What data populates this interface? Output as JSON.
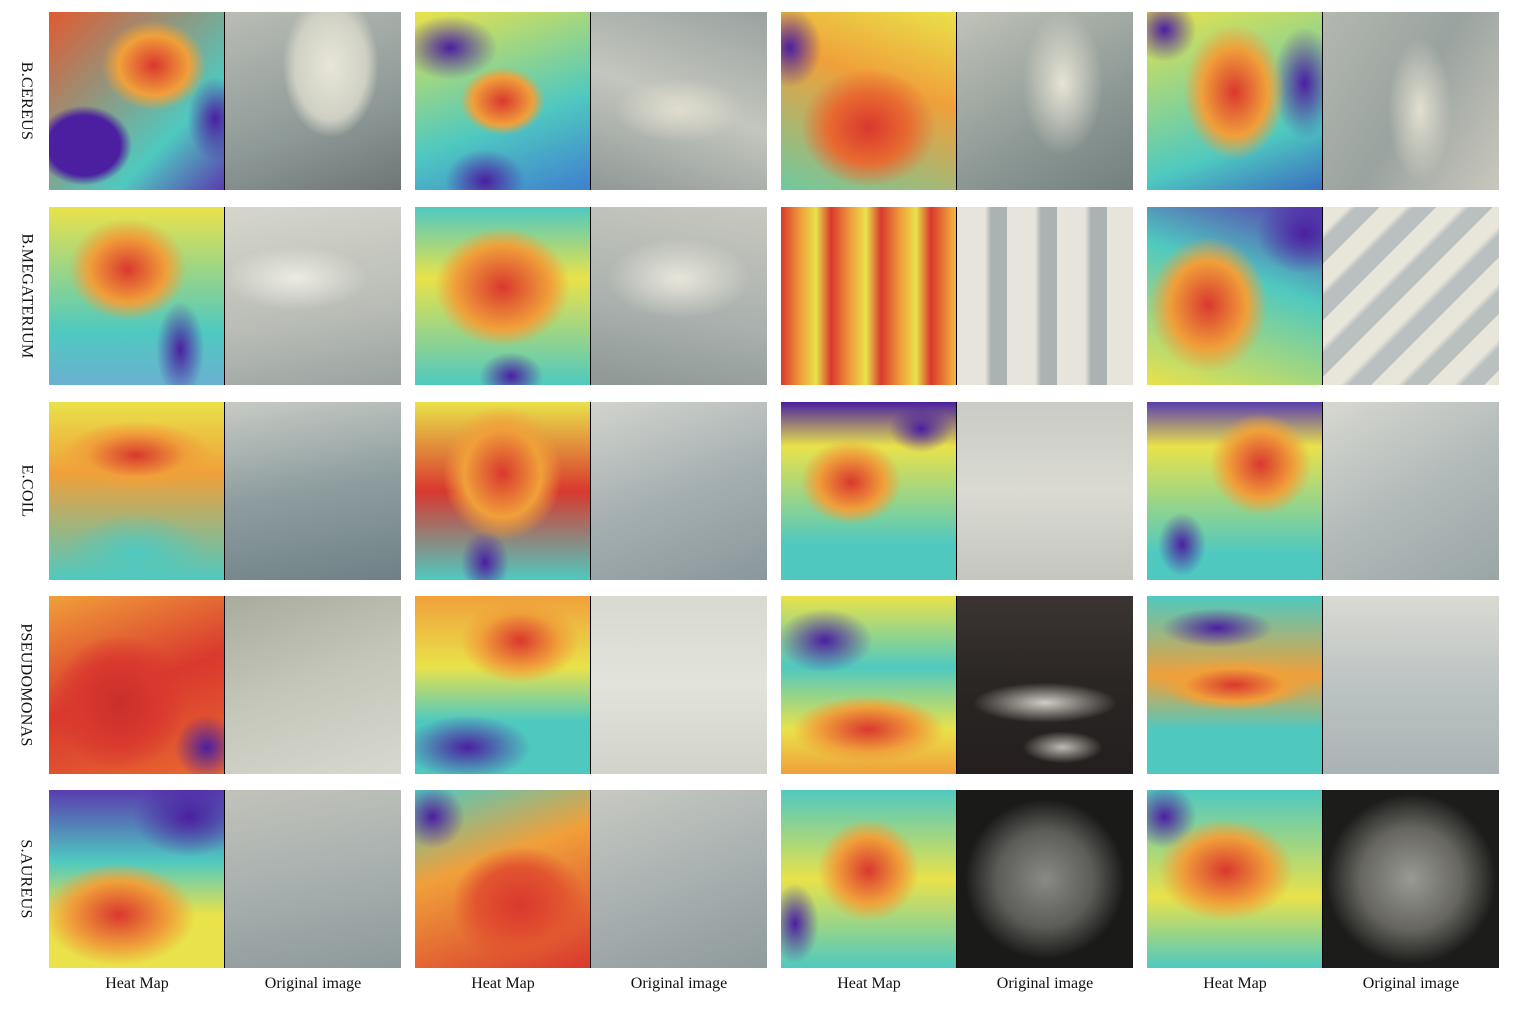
{
  "rows": [
    {
      "label": "B.CEREUS"
    },
    {
      "label": "B.MEGATERIUM"
    },
    {
      "label": "E.COIL"
    },
    {
      "label": "PSEUDOMONAS"
    },
    {
      "label": "S.AUREUS"
    }
  ],
  "columns": [
    {
      "label": "Heat Map"
    },
    {
      "label": "Original image"
    },
    {
      "label": "Heat Map"
    },
    {
      "label": "Original image"
    },
    {
      "label": "Heat Map"
    },
    {
      "label": "Original image"
    },
    {
      "label": "Heat Map"
    },
    {
      "label": "Original image"
    }
  ],
  "palette": {
    "heat_hot": "#d9382e",
    "heat_warm": "#f0a03a",
    "heat_mid": "#e9e24a",
    "heat_cool": "#4fc9c0",
    "heat_cold": "#4b1fa0",
    "plate_light": "#d8d8cc",
    "plate_dark": "#2a2624"
  }
}
